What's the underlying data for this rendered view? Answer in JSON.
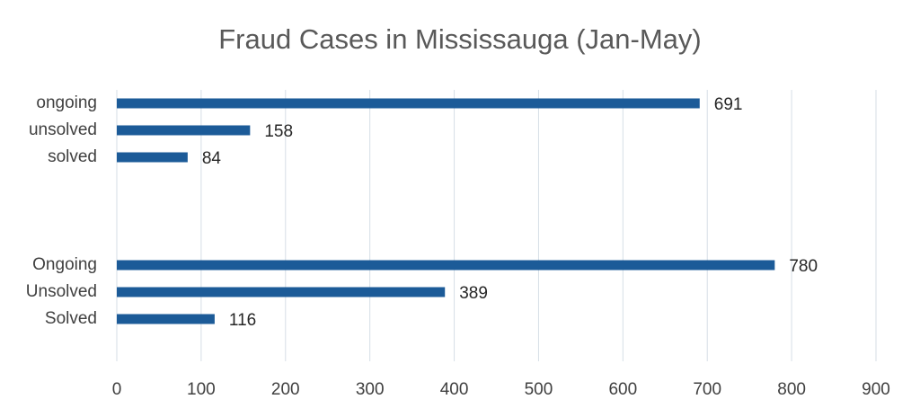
{
  "chart_data": {
    "type": "hbar",
    "title": "Fraud Cases in Mississauga (Jan-May)",
    "categories": [
      "ongoing",
      "unsolved",
      "solved",
      null,
      null,
      null,
      "Ongoing",
      "Unsolved",
      "Solved"
    ],
    "values": [
      691,
      158,
      84,
      null,
      null,
      null,
      780,
      389,
      116
    ],
    "color": "#1c5b98",
    "xlim": [
      0,
      900
    ],
    "xticks": [
      0,
      100,
      200,
      300,
      400,
      500,
      600,
      700,
      800,
      900
    ],
    "grid": true
  }
}
